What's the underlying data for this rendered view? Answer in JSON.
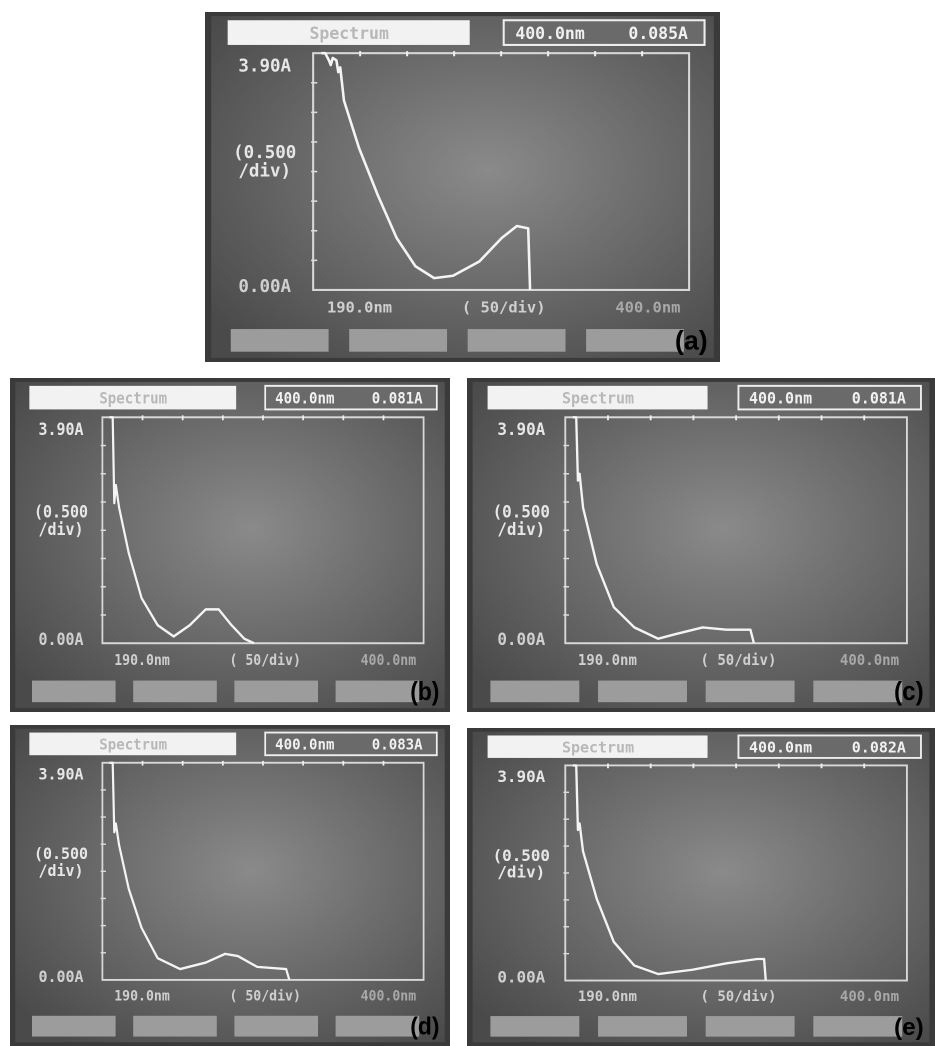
{
  "panels": [
    {
      "label": "(a)",
      "title": "Spectrum",
      "wavelength": "400.0nm",
      "absorbance": "0.085A",
      "y_max": "3.90A",
      "y_scale": [
        "(0.500",
        "/div)"
      ],
      "y_min": "0.00A",
      "x_min": "190.0nm",
      "x_scale": "( 50/div)",
      "x_max": "400.0nm"
    },
    {
      "label": "(b)",
      "title": "Spectrum",
      "wavelength": "400.0nm",
      "absorbance": "0.081A",
      "y_max": "3.90A",
      "y_scale": [
        "(0.500",
        "/div)"
      ],
      "y_min": "0.00A",
      "x_min": "190.0nm",
      "x_scale": "( 50/div)",
      "x_max": "400.0nm"
    },
    {
      "label": "(c)",
      "title": "Spectrum",
      "wavelength": "400.0nm",
      "absorbance": "0.081A",
      "y_max": "3.90A",
      "y_scale": [
        "(0.500",
        "/div)"
      ],
      "y_min": "0.00A",
      "x_min": "190.0nm",
      "x_scale": "( 50/div)",
      "x_max": "400.0nm"
    },
    {
      "label": "(d)",
      "title": "Spectrum",
      "wavelength": "400.0nm",
      "absorbance": "0.083A",
      "y_max": "3.90A",
      "y_scale": [
        "(0.500",
        "/div)"
      ],
      "y_min": "0.00A",
      "x_min": "190.0nm",
      "x_scale": "( 50/div)",
      "x_max": "400.0nm"
    },
    {
      "label": "(e)",
      "title": "Spectrum",
      "wavelength": "400.0nm",
      "absorbance": "0.082A",
      "y_max": "3.90A",
      "y_scale": [
        "(0.500",
        "/div)"
      ],
      "y_min": "0.00A",
      "x_min": "190.0nm",
      "x_scale": "( 50/div)",
      "x_max": "400.0nm"
    }
  ]
}
